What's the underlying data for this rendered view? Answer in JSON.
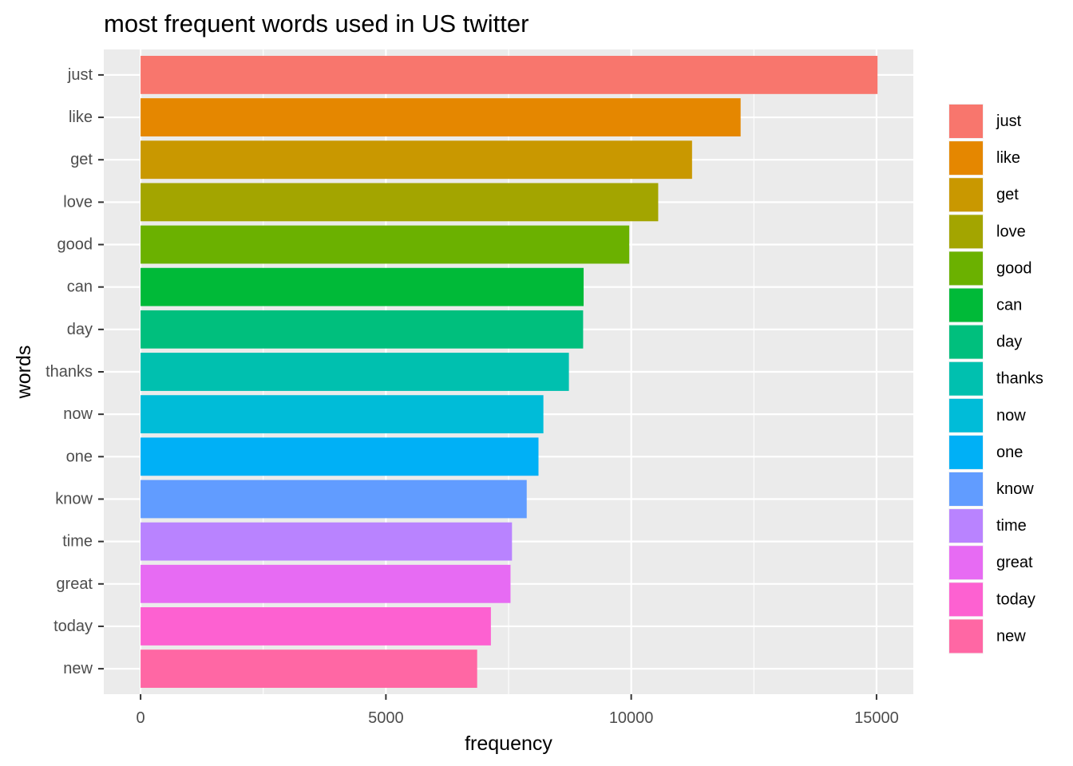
{
  "chart_data": {
    "type": "bar",
    "orientation": "horizontal",
    "title": "most frequent words used in US twitter",
    "xlabel": "frequency",
    "ylabel": "words",
    "categories": [
      "just",
      "like",
      "get",
      "love",
      "good",
      "can",
      "day",
      "thanks",
      "now",
      "one",
      "know",
      "time",
      "great",
      "today",
      "new"
    ],
    "values": [
      15020,
      12230,
      11240,
      10550,
      9960,
      9030,
      9020,
      8730,
      8210,
      8110,
      7870,
      7570,
      7540,
      7140,
      6860
    ],
    "colors": [
      "#F8766D",
      "#E58700",
      "#C99800",
      "#A3A500",
      "#6BB100",
      "#00BA38",
      "#00BF7D",
      "#00C0AF",
      "#00BCD8",
      "#00B0F6",
      "#619CFF",
      "#B983FF",
      "#E76BF3",
      "#FD61D1",
      "#FF67A4"
    ],
    "xlim": [
      -750,
      15750
    ],
    "xticks": [
      0,
      5000,
      10000,
      15000
    ],
    "xtick_labels": [
      "0",
      "5000",
      "10000",
      "15000"
    ],
    "grid": true,
    "legend": {
      "position": "right",
      "entries": [
        "just",
        "like",
        "get",
        "love",
        "good",
        "can",
        "day",
        "thanks",
        "now",
        "one",
        "know",
        "time",
        "great",
        "today",
        "new"
      ]
    },
    "panel_background": "#EBEBEB",
    "grid_color": "#FFFFFF"
  }
}
